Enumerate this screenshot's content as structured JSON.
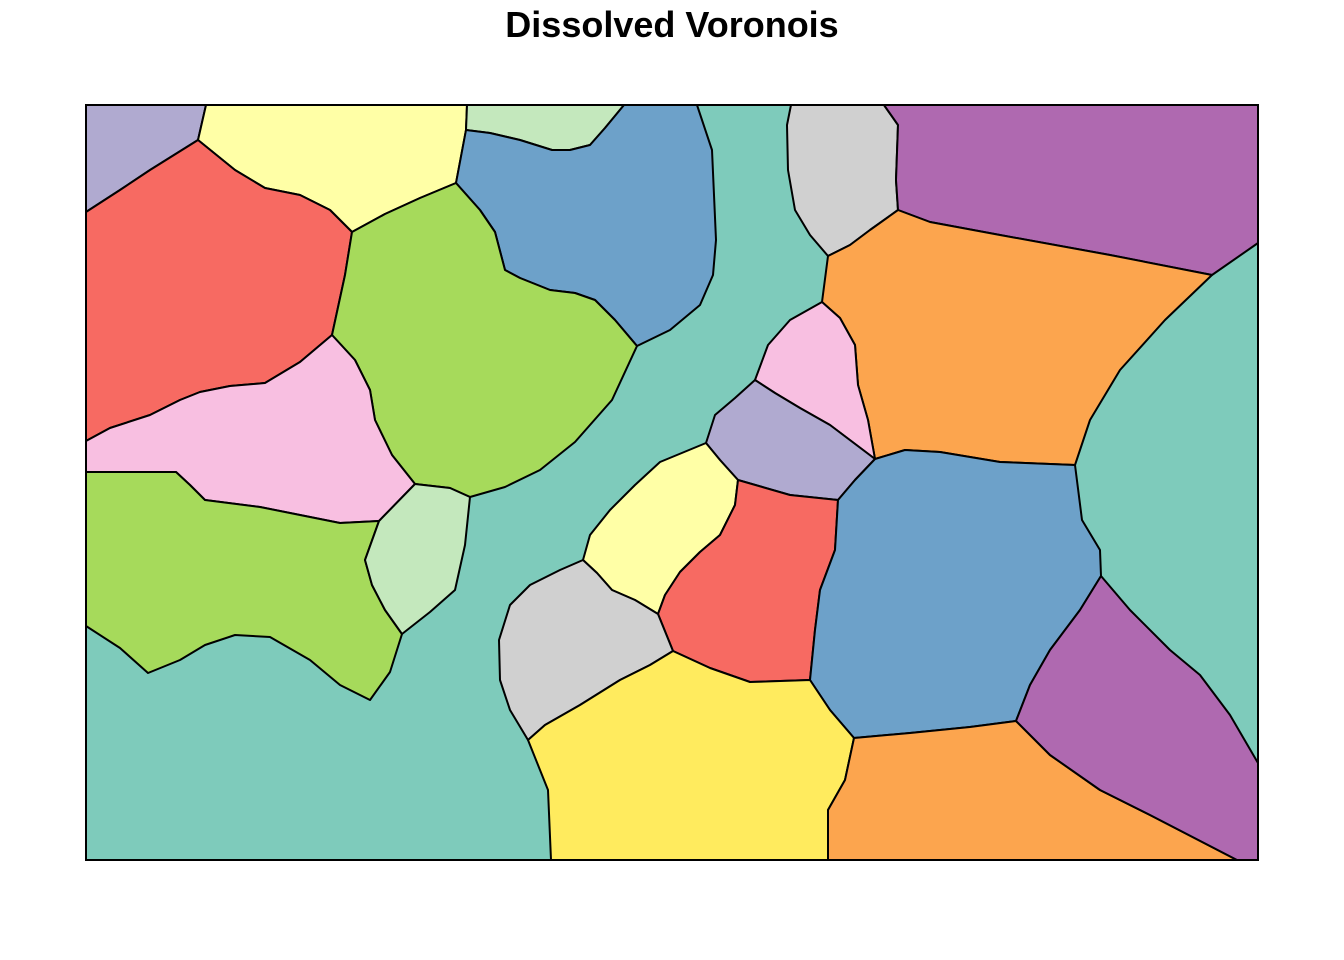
{
  "title": "Dissolved Voronois",
  "palette": {
    "teal": "#7ECBBB",
    "yellow_pale": "#FFFFA6",
    "lavender": "#B0AAD0",
    "salmon": "#F76A62",
    "blue": "#6DA1C9",
    "orange": "#FCA54E",
    "green": "#A6DA5B",
    "pink": "#F8BFE1",
    "gray": "#D0D0D0",
    "purple": "#AF69B0",
    "mint": "#C4E8BD",
    "yellow": "#FFEB5E"
  },
  "regions": [
    {
      "id": "region-teal",
      "color": "teal"
    },
    {
      "id": "region-lavender-nw",
      "color": "lavender"
    },
    {
      "id": "region-yellow-pale-n",
      "color": "yellow_pale"
    },
    {
      "id": "region-mint-n",
      "color": "mint"
    },
    {
      "id": "region-blue-n",
      "color": "blue"
    },
    {
      "id": "region-gray-n",
      "color": "gray"
    },
    {
      "id": "region-purple-ne",
      "color": "purple"
    },
    {
      "id": "region-salmon-w",
      "color": "salmon"
    },
    {
      "id": "region-green-nc",
      "color": "green"
    },
    {
      "id": "region-pink-w",
      "color": "pink"
    },
    {
      "id": "region-green-w",
      "color": "green"
    },
    {
      "id": "region-mint-c",
      "color": "mint"
    },
    {
      "id": "region-orange-e",
      "color": "orange"
    },
    {
      "id": "region-pink-c",
      "color": "pink"
    },
    {
      "id": "region-lavender-c",
      "color": "lavender"
    },
    {
      "id": "region-yellow-pale-c",
      "color": "yellow_pale"
    },
    {
      "id": "region-salmon-c",
      "color": "salmon"
    },
    {
      "id": "region-blue-se",
      "color": "blue"
    },
    {
      "id": "region-gray-s",
      "color": "gray"
    },
    {
      "id": "region-yellow-s",
      "color": "yellow"
    },
    {
      "id": "region-orange-s",
      "color": "orange"
    },
    {
      "id": "region-purple-se",
      "color": "purple"
    }
  ]
}
